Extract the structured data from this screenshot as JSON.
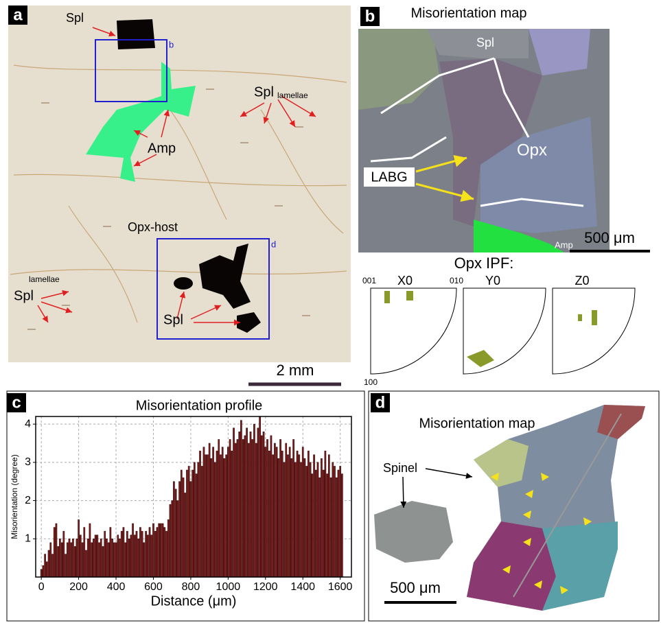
{
  "panel_a": {
    "label": "a",
    "spl_top": "Spl",
    "box_b": "b",
    "spl_lamellae": "Spl",
    "lamellae_right": "lamellae",
    "amp": "Amp",
    "opx_host": "Opx-host",
    "box_d": "d",
    "spl_bottom": "Spl",
    "spl_left": "Spl",
    "lamellae_left": "lamellae",
    "scale_bar": "2 mm"
  },
  "panel_b": {
    "label": "b",
    "title": "Misorientation map",
    "spl": "Spl",
    "opx": "Opx",
    "labg": "LABG",
    "amp": "Amp",
    "scale_bar": "500 μm",
    "ipf_title": "Opx IPF:",
    "ipf_x": "X0",
    "ipf_y": "Y0",
    "ipf_z": "Z0",
    "pole_001": "001",
    "pole_010": "010",
    "pole_100": "100"
  },
  "panel_d": {
    "label": "d",
    "title": "Misorientation map",
    "spinel": "Spinel",
    "scale_bar": "500 μm"
  },
  "chart_data": {
    "type": "bar",
    "panel_label": "c",
    "title": "Misorientation profile",
    "ylabel": "Misorientation (degree)",
    "xlabel": "Distance (μm)",
    "color": "#7a1c1c",
    "grid": true,
    "xlim": [
      -30,
      1660
    ],
    "ylim": [
      0,
      4.2
    ],
    "xticks": [
      0,
      200,
      400,
      600,
      800,
      1000,
      1200,
      1400,
      1600
    ],
    "yticks": [
      1,
      2,
      3,
      4
    ],
    "x": [
      0,
      10,
      20,
      30,
      40,
      50,
      60,
      70,
      80,
      90,
      100,
      110,
      120,
      130,
      140,
      150,
      160,
      170,
      180,
      190,
      200,
      210,
      220,
      230,
      240,
      250,
      260,
      270,
      280,
      290,
      300,
      310,
      320,
      330,
      340,
      350,
      360,
      370,
      380,
      390,
      400,
      410,
      420,
      430,
      440,
      450,
      460,
      470,
      480,
      490,
      500,
      510,
      520,
      530,
      540,
      550,
      560,
      570,
      580,
      590,
      600,
      610,
      620,
      630,
      640,
      650,
      660,
      670,
      680,
      690,
      700,
      710,
      720,
      730,
      740,
      750,
      760,
      770,
      780,
      790,
      800,
      810,
      820,
      830,
      840,
      850,
      860,
      870,
      880,
      890,
      900,
      910,
      920,
      930,
      940,
      950,
      960,
      970,
      980,
      990,
      1000,
      1010,
      1020,
      1030,
      1040,
      1050,
      1060,
      1070,
      1080,
      1090,
      1100,
      1110,
      1120,
      1130,
      1140,
      1150,
      1160,
      1170,
      1180,
      1190,
      1200,
      1210,
      1220,
      1230,
      1240,
      1250,
      1260,
      1270,
      1280,
      1290,
      1300,
      1310,
      1320,
      1330,
      1340,
      1350,
      1360,
      1370,
      1380,
      1390,
      1400,
      1410,
      1420,
      1430,
      1440,
      1450,
      1460,
      1470,
      1480,
      1490,
      1500,
      1510,
      1520,
      1530,
      1540,
      1550,
      1560,
      1570,
      1580,
      1590,
      1600,
      1610
    ],
    "values": [
      0.2,
      0.3,
      0.6,
      0.4,
      0.7,
      0.9,
      0.6,
      1.3,
      1.4,
      0.8,
      1.0,
      0.9,
      1.2,
      0.6,
      0.9,
      1.0,
      0.9,
      1.0,
      0.8,
      1.0,
      1.5,
      1.1,
      0.9,
      1.3,
      0.7,
      1.0,
      1.4,
      0.9,
      1.0,
      1.1,
      1.1,
      0.9,
      1.0,
      0.8,
      1.2,
      1.0,
      0.9,
      1.3,
      1.0,
      0.9,
      0.9,
      1.1,
      1.0,
      1.2,
      1.3,
      0.9,
      1.2,
      1.0,
      1.1,
      1.4,
      1.1,
      1.2,
      1.0,
      1.3,
      1.2,
      0.9,
      1.2,
      1.1,
      1.3,
      1.1,
      1.4,
      1.2,
      1.3,
      1.4,
      1.4,
      1.4,
      1.3,
      1.2,
      1.5,
      1.9,
      2.0,
      2.5,
      2.3,
      2.0,
      2.5,
      2.8,
      2.6,
      2.2,
      2.8,
      2.9,
      2.5,
      2.8,
      3.0,
      2.7,
      3.0,
      3.3,
      2.9,
      3.4,
      3.2,
      3.2,
      3.5,
      3.1,
      3.4,
      3.0,
      3.3,
      3.6,
      3.2,
      3.4,
      3.1,
      3.2,
      3.4,
      3.6,
      3.3,
      3.9,
      3.5,
      3.6,
      3.8,
      4.1,
      3.6,
      3.7,
      3.9,
      3.5,
      3.8,
      3.6,
      4.0,
      3.5,
      3.9,
      4.2,
      3.7,
      3.8,
      3.4,
      3.6,
      3.3,
      3.7,
      3.2,
      3.5,
      3.4,
      3.1,
      3.6,
      3.3,
      3.0,
      3.5,
      3.2,
      3.4,
      3.1,
      3.6,
      3.0,
      3.3,
      3.2,
      3.0,
      3.4,
      3.1,
      2.9,
      3.3,
      3.0,
      2.7,
      3.2,
      2.8,
      3.0,
      2.6,
      3.1,
      2.8,
      3.3,
      2.7,
      3.2,
      2.6,
      3.0,
      2.9,
      2.6,
      2.8,
      2.9,
      2.7
    ]
  }
}
